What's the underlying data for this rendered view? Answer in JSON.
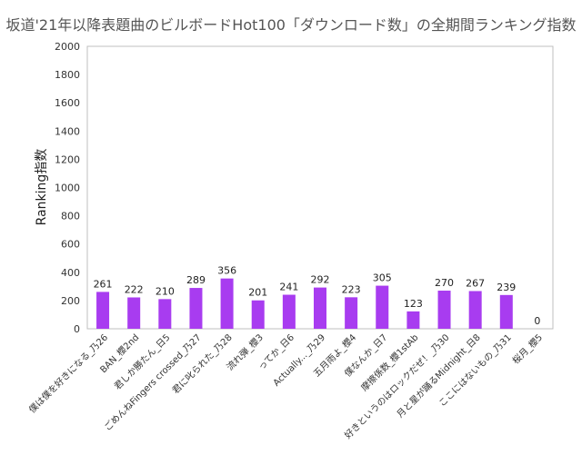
{
  "chart_data": {
    "type": "bar",
    "title": "坂道'21年以降表題曲のビルボードHot100「ダウンロード数」の全期間ランキング指数",
    "xlabel": "",
    "ylabel": "Ranking指数",
    "ylim": [
      0,
      2000
    ],
    "yticks": [
      0,
      200,
      400,
      600,
      800,
      1000,
      1200,
      1400,
      1600,
      1800,
      2000
    ],
    "grid": false,
    "bar_color": "#a83cf0",
    "categories": [
      "僕は僕を好きになる_乃26",
      "BAN_櫻2nd",
      "君しか勝たん_日5",
      "ごめんねFingers crossed_乃27",
      "君に叱られた_乃28",
      "流れ弾_櫻3",
      "ってか_日6",
      "Actually..._乃29",
      "五月雨よ_櫻4",
      "僕なんか_日7",
      "摩擦係数_櫻1stAb",
      "好きというのはロックだぜ！_乃30",
      "月と星が踊るMidnight_日8",
      "ここにはないもの_乃31",
      "桜月_櫻5"
    ],
    "values": [
      261,
      222,
      210,
      289,
      356,
      201,
      241,
      292,
      223,
      305,
      123,
      270,
      267,
      239,
      0
    ],
    "data_labels": [
      "261",
      "222",
      "210",
      "289",
      "356",
      "201",
      "241",
      "292",
      "223",
      "305",
      "123",
      "270",
      "267",
      "239",
      "0"
    ]
  }
}
